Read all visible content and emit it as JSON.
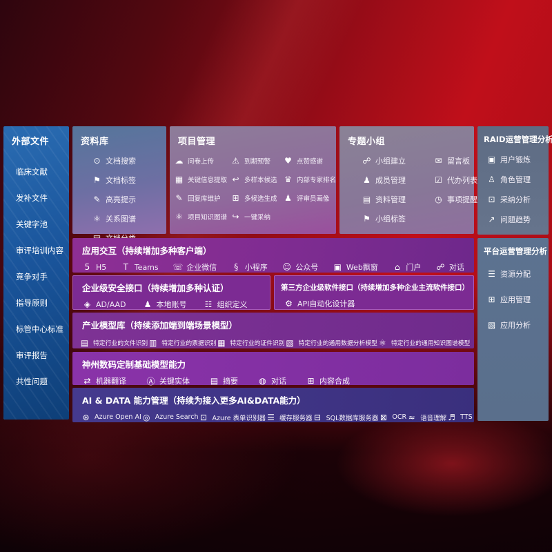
{
  "colors": {
    "background_red": "#c00f1a",
    "background_dark_maroon": "#2e050e",
    "sidebar_blue_top": "#2a6cb2",
    "sidebar_blue_bottom": "#0e3f78",
    "panel_slate_blue": "#5c7290",
    "panel_gray_mauve": "#8a8296",
    "row_purple": "#7c2b93",
    "row_violet": "#8a33a9",
    "row_indigo": "#453a8e",
    "text": "#ffffff"
  },
  "sidebar": {
    "title": "外部文件",
    "items": [
      {
        "label": "临床文献"
      },
      {
        "label": "发补文件"
      },
      {
        "label": "关键字池"
      },
      {
        "label": "审评培训内容"
      },
      {
        "label": "竞争对手"
      },
      {
        "label": "指导原则"
      },
      {
        "label": "标管中心标准"
      },
      {
        "label": "审评报告"
      },
      {
        "label": "共性问题"
      }
    ]
  },
  "library": {
    "title": "资料库",
    "items": [
      {
        "icon": "document-search-icon",
        "glyph": "⊙",
        "label": "文档搜索"
      },
      {
        "icon": "document-tag-icon",
        "glyph": "⚑",
        "label": "文档标签"
      },
      {
        "icon": "highlight-pen-icon",
        "glyph": "✎",
        "label": "高亮提示"
      },
      {
        "icon": "relation-graph-icon",
        "glyph": "⚛",
        "label": "关系图谱"
      },
      {
        "icon": "document-classify-icon",
        "glyph": "▤",
        "label": "文档分类"
      }
    ]
  },
  "project": {
    "title": "项目管理",
    "items": [
      {
        "icon": "cloud-upload-icon",
        "glyph": "☁",
        "label": "问卷上传"
      },
      {
        "icon": "due-alert-icon",
        "glyph": "⚠",
        "label": "到期预警"
      },
      {
        "icon": "like-thanks-icon",
        "glyph": "♥",
        "label": "点赞感谢"
      },
      {
        "icon": "key-info-extract-icon",
        "glyph": "▦",
        "label": "关键信息提取"
      },
      {
        "icon": "multi-sample-icon",
        "glyph": "↩",
        "label": "多样本候选"
      },
      {
        "icon": "expert-ranking-icon",
        "glyph": "♛",
        "label": "内部专家排名"
      },
      {
        "icon": "reply-library-icon",
        "glyph": "✎",
        "label": "回复库维护"
      },
      {
        "icon": "multi-candidate-icon",
        "glyph": "⊞",
        "label": "多候选生成"
      },
      {
        "icon": "reviewer-profile-icon",
        "glyph": "♟",
        "label": "评审员画像"
      },
      {
        "icon": "project-knowledge-graph-icon",
        "glyph": "⚛",
        "label": "项目知识图谱"
      },
      {
        "icon": "one-click-adopt-icon",
        "glyph": "↪",
        "label": "一键采纳"
      }
    ]
  },
  "groups": {
    "title": "专题小组",
    "items": [
      {
        "icon": "group-create-icon",
        "glyph": "☍",
        "label": "小组建立"
      },
      {
        "icon": "message-board-icon",
        "glyph": "✉",
        "label": "留言板"
      },
      {
        "icon": "member-management-icon",
        "glyph": "♟",
        "label": "成员管理"
      },
      {
        "icon": "todo-list-icon",
        "glyph": "☑",
        "label": "代办列表"
      },
      {
        "icon": "material-management-icon",
        "glyph": "▤",
        "label": "资料管理"
      },
      {
        "icon": "reminder-bell-icon",
        "glyph": "◷",
        "label": "事项提醒"
      },
      {
        "icon": "group-tag-icon",
        "glyph": "⚑",
        "label": "小组标签"
      }
    ]
  },
  "raid": {
    "title": "RAID运营管理分析",
    "items": [
      {
        "icon": "user-training-icon",
        "glyph": "▣",
        "label": "用户锻炼"
      },
      {
        "icon": "role-management-icon",
        "glyph": "♙",
        "label": "角色管理"
      },
      {
        "icon": "adoption-analysis-icon",
        "glyph": "⊡",
        "label": "采纳分析"
      },
      {
        "icon": "issue-trend-icon",
        "glyph": "↗",
        "label": "问题趋势"
      }
    ]
  },
  "platform": {
    "title": "平台运营管理分析",
    "items": [
      {
        "icon": "resource-allocation-icon",
        "glyph": "☰",
        "label": "资源分配"
      },
      {
        "icon": "app-management-icon",
        "glyph": "⊞",
        "label": "应用管理"
      },
      {
        "icon": "app-analysis-icon",
        "glyph": "▧",
        "label": "应用分析"
      }
    ]
  },
  "rows": {
    "interaction": {
      "title": "应用交互（持续增加多种客户端）",
      "items": [
        {
          "icon": "h5-icon",
          "glyph": "5",
          "label": "H5"
        },
        {
          "icon": "teams-icon",
          "glyph": "T",
          "label": "Teams"
        },
        {
          "icon": "wechat-work-icon",
          "glyph": "☏",
          "label": "企业微信"
        },
        {
          "icon": "miniprogram-icon",
          "glyph": "§",
          "label": "小程序"
        },
        {
          "icon": "official-account-icon",
          "glyph": "☺",
          "label": "公众号"
        },
        {
          "icon": "web-popup-icon",
          "glyph": "▣",
          "label": "Web飘窗"
        },
        {
          "icon": "portal-icon",
          "glyph": "⌂",
          "label": "门户"
        },
        {
          "icon": "dialog-icon",
          "glyph": "☍",
          "label": "对话"
        }
      ]
    },
    "security": {
      "title": "企业级安全接口（持续增加多种认证）",
      "items": [
        {
          "icon": "ad-aad-icon",
          "glyph": "◈",
          "label": "AD/AAD"
        },
        {
          "icon": "local-account-icon",
          "glyph": "♟",
          "label": "本地账号"
        },
        {
          "icon": "org-definition-icon",
          "glyph": "☷",
          "label": "组织定义"
        }
      ]
    },
    "thirdparty": {
      "title": "第三方企业级软件接口（持续增加多种企业主流软件接口）",
      "items": [
        {
          "icon": "api-designer-gear-icon",
          "glyph": "⚙",
          "label": "API自动化设计器"
        }
      ]
    },
    "models": {
      "title": "产业模型库（持续添加端到端场景模型）",
      "items": [
        {
          "icon": "industry-file-recognition-icon",
          "glyph": "▤",
          "label": "特定行业的文件识别"
        },
        {
          "icon": "industry-invoice-recognition-icon",
          "glyph": "▥",
          "label": "特定行业的票据识别"
        },
        {
          "icon": "industry-id-recognition-icon",
          "glyph": "▦",
          "label": "特定行业的证件识别"
        },
        {
          "icon": "industry-data-analysis-icon",
          "glyph": "▧",
          "label": "特定行业的通用数据分析模型"
        },
        {
          "icon": "industry-knowledge-graph-icon",
          "glyph": "⚛",
          "label": "特定行业的通用知识图谱模型"
        }
      ]
    },
    "foundation": {
      "title": "神州数码定制基础模型能力",
      "items": [
        {
          "icon": "machine-translation-icon",
          "glyph": "⇄",
          "label": "机器翻译"
        },
        {
          "icon": "key-entity-icon",
          "glyph": "Ⓐ",
          "label": "关键实体"
        },
        {
          "icon": "summary-icon",
          "glyph": "▤",
          "label": "摘要"
        },
        {
          "icon": "dialogue-bubble-icon",
          "glyph": "◍",
          "label": "对话"
        },
        {
          "icon": "content-synthesis-icon",
          "glyph": "⊞",
          "label": "内容合成"
        }
      ]
    },
    "aidata": {
      "title": "AI & DATA 能力管理（持续为接入更多AI&DATA能力）",
      "items": [
        {
          "icon": "azure-openai-icon",
          "glyph": "⊛",
          "label": "Azure Open AI"
        },
        {
          "icon": "azure-search-icon",
          "glyph": "◎",
          "label": "Azure Search"
        },
        {
          "icon": "azure-form-recognizer-icon",
          "glyph": "⊡",
          "label": "Azure 表单识别器"
        },
        {
          "icon": "cache-server-icon",
          "glyph": "☰",
          "label": "缓存服务器"
        },
        {
          "icon": "sql-database-server-icon",
          "glyph": "⊟",
          "label": "SQL数据库服务器"
        },
        {
          "icon": "ocr-icon",
          "glyph": "⊠",
          "label": "OCR"
        },
        {
          "icon": "speech-understanding-icon",
          "glyph": "≈",
          "label": "语音理解"
        },
        {
          "icon": "tts-icon",
          "glyph": "♬",
          "label": "TTS"
        }
      ]
    }
  }
}
